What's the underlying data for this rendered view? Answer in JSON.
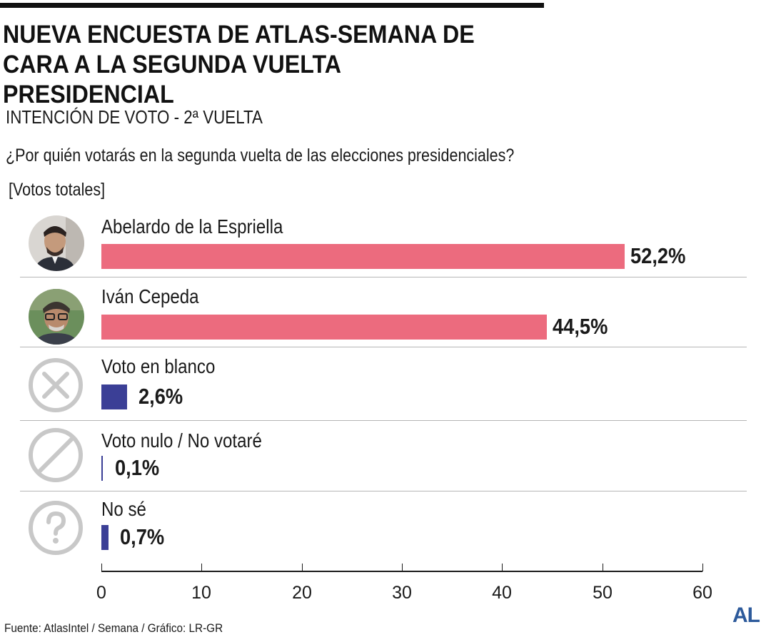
{
  "title_line1": "NUEVA ENCUESTA DE ATLAS-SEMANA DE",
  "title_line2": "CARA A LA SEGUNDA VUELTA PRESIDENCIAL",
  "subtitle": "INTENCIÓN DE VOTO - 2ª VUELTA",
  "question": "¿Por quién votarás en la segunda vuelta de las elecciones presidenciales?",
  "units": "[Votos totales]",
  "source": "Fuente: AtlasIntel / Semana / Gráfico: LR-GR",
  "brand": "AL",
  "colors": {
    "candidate_bar": "#ec6b7e",
    "other_bar": "#3b3f96",
    "icon_gray": "#c8c8c8",
    "brand": "#2d5a9b"
  },
  "icons": [
    "avatar-photo",
    "avatar-photo",
    "x-circle-icon",
    "prohibited-icon",
    "question-circle-icon"
  ],
  "chart_data": {
    "type": "bar",
    "orientation": "horizontal",
    "categories": [
      "Abelardo de la Espriella",
      "Iván Cepeda",
      "Voto en blanco",
      "Voto nulo / No votaré",
      "No sé"
    ],
    "values": [
      52.2,
      44.5,
      2.6,
      0.1,
      0.7
    ],
    "value_labels": [
      "52,2%",
      "44,5%",
      "2,6%",
      "0,1%",
      "0,7%"
    ],
    "xlim": [
      0,
      60
    ],
    "x_ticks": [
      0,
      10,
      20,
      30,
      40,
      50,
      60
    ],
    "x_tick_labels": [
      "0",
      "10",
      "20",
      "30",
      "40",
      "50",
      "60"
    ],
    "grid": false
  }
}
